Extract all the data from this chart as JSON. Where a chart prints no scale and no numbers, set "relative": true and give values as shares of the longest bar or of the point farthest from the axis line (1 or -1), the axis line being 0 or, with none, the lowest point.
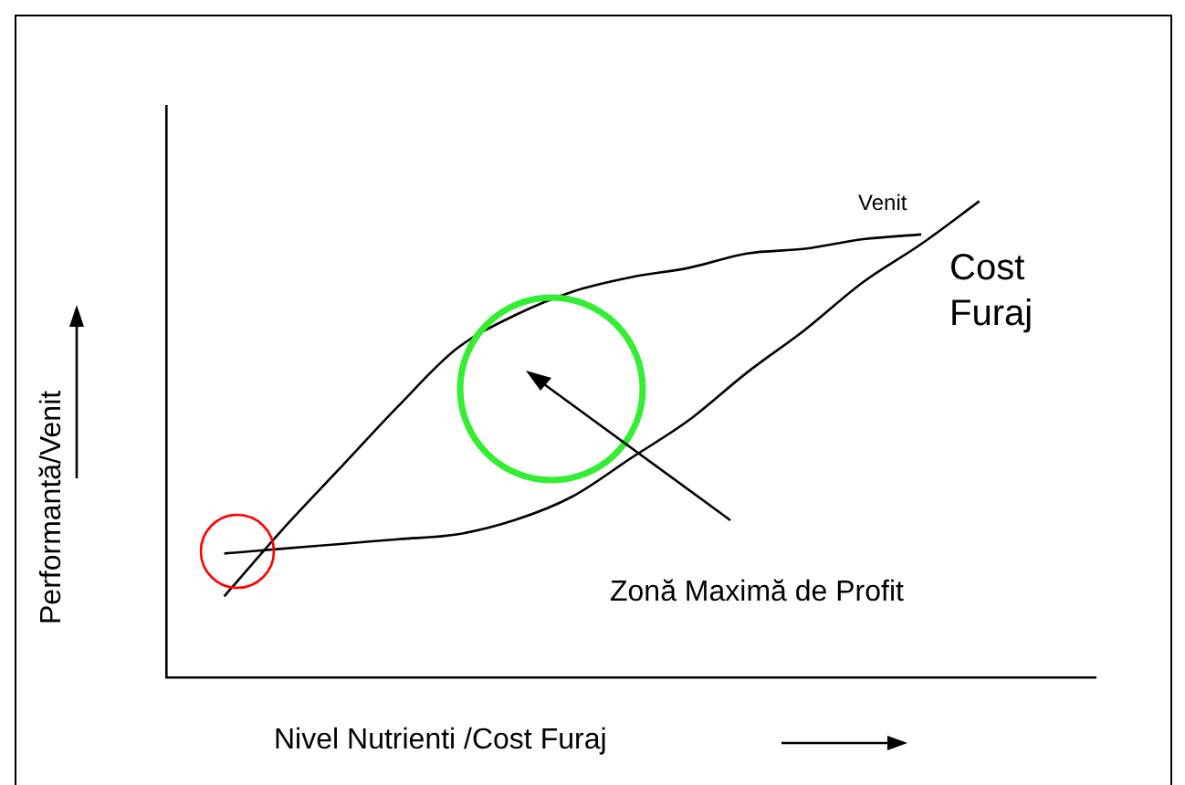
{
  "chart_data": {
    "type": "line",
    "relative": true,
    "xlabel": "Nivel Nutrienti /Cost Furaj",
    "ylabel": "Performantă/Venit",
    "categories": [
      null,
      null,
      null,
      null,
      null,
      null,
      null,
      null,
      null,
      null,
      null,
      null,
      null,
      null,
      null,
      null,
      null
    ],
    "series": [
      {
        "name": "Venit",
        "color": "#000000",
        "values": [
          null,
          0.17,
          0.31,
          0.44,
          0.57,
          0.69,
          0.76,
          0.81,
          0.84,
          0.86,
          0.89,
          0.9,
          0.92,
          0.93,
          null,
          null,
          null
        ]
      },
      {
        "name": "Cost Furaj",
        "color": "#000000",
        "values": [
          null,
          0.26,
          0.27,
          0.28,
          0.29,
          0.3,
          0.33,
          0.38,
          0.46,
          0.54,
          0.64,
          0.73,
          0.83,
          0.91,
          1,
          null,
          null
        ]
      }
    ],
    "annotations": [
      "Zonă Maximă de Profit"
    ],
    "legend": false,
    "grid": false,
    "tick_labels": false,
    "marker": "none",
    "line_style": "solid"
  }
}
